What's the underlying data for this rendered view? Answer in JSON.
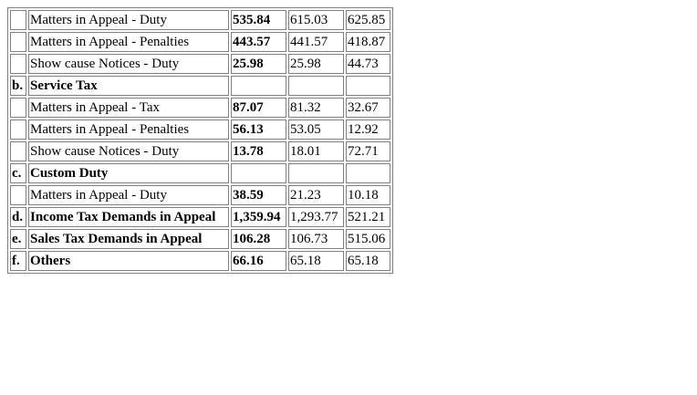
{
  "rows": [
    {
      "idx": "",
      "desc": "Matters in Appeal - Duty",
      "v1": "535.84",
      "v2": "615.03",
      "v3": "625.85",
      "bold": false
    },
    {
      "idx": "",
      "desc": "Matters in Appeal - Penalties",
      "v1": "443.57",
      "v2": "441.57",
      "v3": "418.87",
      "bold": false
    },
    {
      "idx": "",
      "desc": "Show cause Notices - Duty",
      "v1": "25.98",
      "v2": "25.98",
      "v3": "44.73",
      "bold": false
    },
    {
      "idx": "b.",
      "desc": "Service Tax",
      "v1": "",
      "v2": "",
      "v3": "",
      "bold": true
    },
    {
      "idx": "",
      "desc": "Matters in Appeal - Tax",
      "v1": "87.07",
      "v2": "81.32",
      "v3": "32.67",
      "bold": false
    },
    {
      "idx": "",
      "desc": "Matters in Appeal - Penalties",
      "v1": "56.13",
      "v2": "53.05",
      "v3": "12.92",
      "bold": false
    },
    {
      "idx": "",
      "desc": "Show cause Notices - Duty",
      "v1": "13.78",
      "v2": "18.01",
      "v3": "72.71",
      "bold": false
    },
    {
      "idx": "c.",
      "desc": "Custom Duty",
      "v1": "",
      "v2": "",
      "v3": "",
      "bold": true
    },
    {
      "idx": "",
      "desc": "Matters in Appeal - Duty",
      "v1": "38.59",
      "v2": "21.23",
      "v3": "10.18",
      "bold": false
    },
    {
      "idx": "d.",
      "desc": "Income Tax Demands in Appeal",
      "v1": "1,359.94",
      "v2": "1,293.77",
      "v3": "521.21",
      "bold": true
    },
    {
      "idx": "e.",
      "desc": "Sales Tax Demands in Appeal",
      "v1": "106.28",
      "v2": "106.73",
      "v3": "515.06",
      "bold": true
    },
    {
      "idx": "f.",
      "desc": "Others",
      "v1": "66.16",
      "v2": "65.18",
      "v3": "65.18",
      "bold": true
    }
  ]
}
